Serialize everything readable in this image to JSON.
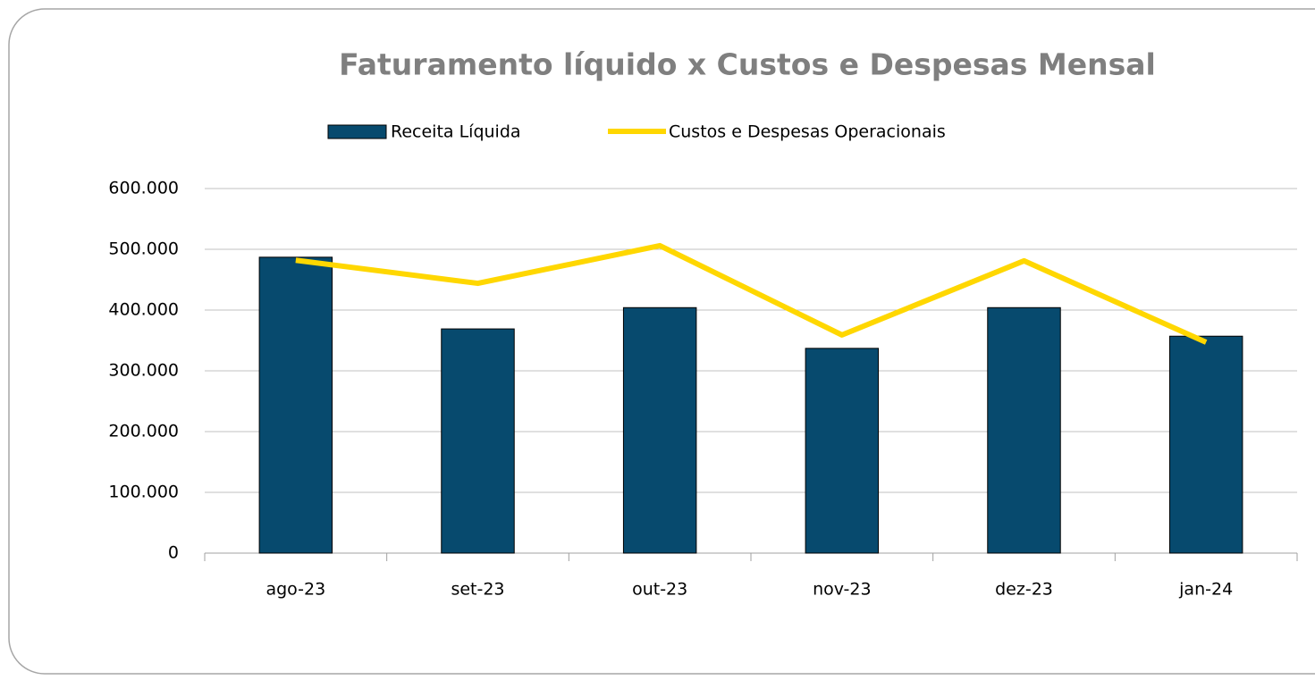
{
  "chart_data": {
    "type": "bar_line",
    "title": "Faturamento líquido x Custos e Despesas Mensal",
    "categories": [
      "ago-23",
      "set-23",
      "out-23",
      "nov-23",
      "dez-23",
      "jan-24"
    ],
    "series": [
      {
        "name": "Receita Líquida",
        "type": "bar",
        "color": "#074a6e",
        "values": [
          487000,
          369000,
          404000,
          337000,
          404000,
          357000
        ]
      },
      {
        "name": "Custos e Despesas Operacionais",
        "type": "line",
        "color": "#ffd700",
        "values": [
          482000,
          444000,
          506000,
          359000,
          481000,
          347000
        ]
      }
    ],
    "ylim": [
      0,
      600000
    ],
    "yticks": [
      0,
      {
        "value": 100000,
        "label": "100.000"
      },
      {
        "value": 200000,
        "label": "200.000"
      },
      {
        "value": 300000,
        "label": "300.000"
      },
      {
        "value": 400000,
        "label": "400.000"
      },
      {
        "value": 500000,
        "label": "500.000"
      },
      {
        "value": 600000,
        "label": "600.000"
      }
    ],
    "grid": true,
    "legend": "top"
  }
}
